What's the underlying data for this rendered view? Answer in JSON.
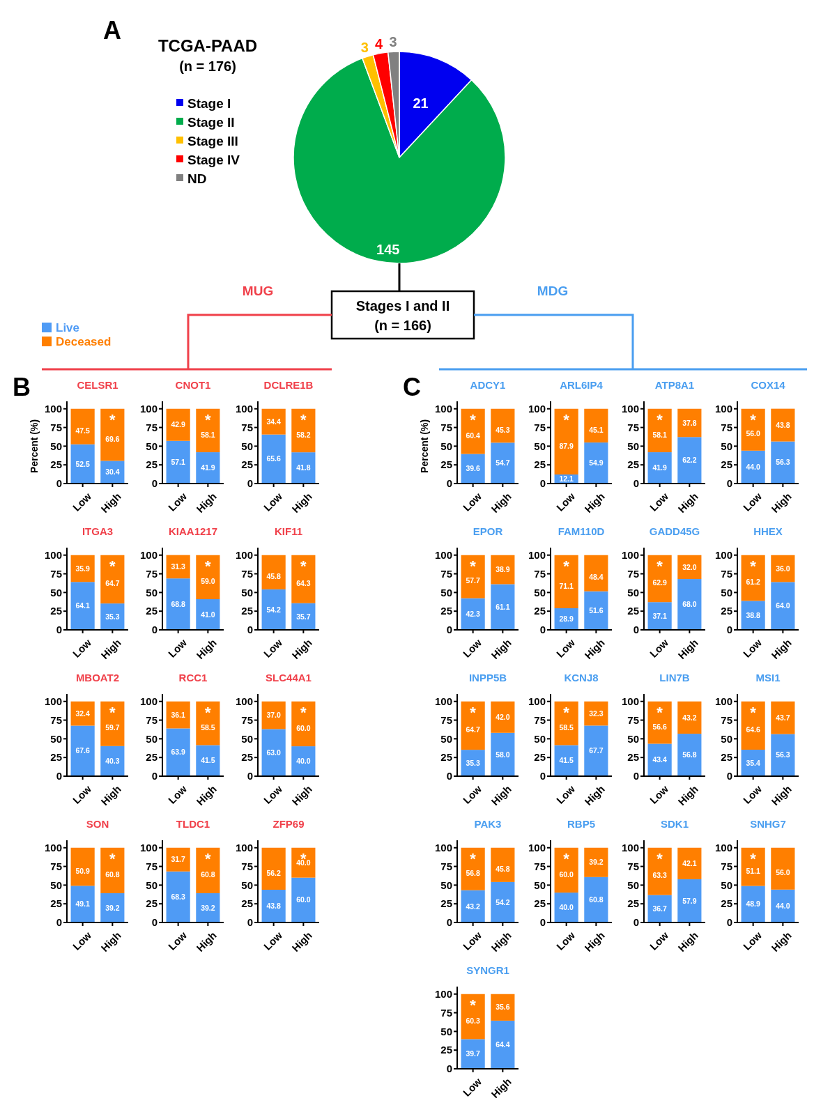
{
  "chart_data": [
    {
      "type": "pie",
      "title": "TCGA-PAAD",
      "subtitle": "(n = 176)",
      "categories": [
        "Stage I",
        "Stage II",
        "Stage III",
        "Stage IV",
        "ND"
      ],
      "values": [
        21,
        145,
        3,
        4,
        3
      ],
      "colors": [
        "#0000f0",
        "#00ac4c",
        "#ffc000",
        "#ff0000",
        "#808080"
      ],
      "data_labels": true,
      "legend": "left",
      "annotations": [
        "A",
        "MUG",
        "MDG",
        "Stages I and II",
        "(n = 166)"
      ]
    },
    {
      "type": "bar",
      "title": "CELSR1",
      "ylabel": "Percent (%)",
      "categories": [
        "Low",
        "High"
      ],
      "stacked": true,
      "series": [
        {
          "name": "Live",
          "color": "#4f9bf5",
          "values": [
            52.5,
            30.4
          ],
          "value_labels": [
            "52.5",
            "30.4"
          ]
        },
        {
          "name": "Deceased",
          "color": "#ff7f00",
          "values": [
            47.5,
            69.6
          ],
          "value_labels": [
            "47.5",
            "69.6"
          ]
        }
      ],
      "legend": "top left",
      "ylim": [
        0,
        110
      ],
      "yticks": [
        0,
        25,
        50,
        75,
        100
      ],
      "annotations": [
        "B",
        {
          "text": "*",
          "x": "High",
          "y": 100
        }
      ]
    },
    {
      "type": "bar",
      "title": "CNOT1",
      "categories": [
        "Low",
        "High"
      ],
      "stacked": true,
      "series": [
        {
          "color": "#4f9bf5",
          "values": [
            57.1,
            41.9
          ],
          "value_labels": [
            "57.1",
            "41.9"
          ]
        },
        {
          "color": "#ff7f00",
          "values": [
            42.9,
            58.1
          ],
          "value_labels": [
            "42.9",
            "58.1"
          ]
        }
      ],
      "ylim": [
        0,
        110
      ],
      "yticks": [
        0,
        25,
        50,
        75,
        100
      ],
      "annotations": [
        {
          "text": "*",
          "x": "High",
          "y": 100
        }
      ]
    },
    {
      "type": "bar",
      "title": "DCLRE1B",
      "categories": [
        "Low",
        "High"
      ],
      "stacked": true,
      "series": [
        {
          "color": "#4f9bf5",
          "values": [
            65.6,
            41.8
          ],
          "value_labels": [
            "65.6",
            "41.8"
          ]
        },
        {
          "color": "#ff7f00",
          "values": [
            34.4,
            58.2
          ],
          "value_labels": [
            "34.4",
            "58.2"
          ]
        }
      ],
      "ylim": [
        0,
        110
      ],
      "yticks": [
        0,
        25,
        50,
        75,
        100
      ],
      "annotations": [
        {
          "text": "*",
          "x": "High",
          "y": 100
        }
      ]
    },
    {
      "type": "bar",
      "title": "ITGA3",
      "categories": [
        "Low",
        "High"
      ],
      "stacked": true,
      "series": [
        {
          "color": "#4f9bf5",
          "values": [
            64.1,
            35.3
          ],
          "value_labels": [
            "64.1",
            "35.3"
          ]
        },
        {
          "color": "#ff7f00",
          "values": [
            35.9,
            64.7
          ],
          "value_labels": [
            "35.9",
            "64.7"
          ]
        }
      ],
      "ylim": [
        0,
        110
      ],
      "yticks": [
        0,
        25,
        50,
        75,
        100
      ],
      "annotations": [
        {
          "text": "*",
          "x": "High",
          "y": 100
        }
      ]
    },
    {
      "type": "bar",
      "title": "KIAA1217",
      "categories": [
        "Low",
        "High"
      ],
      "stacked": true,
      "series": [
        {
          "color": "#4f9bf5",
          "values": [
            68.8,
            41.0
          ],
          "value_labels": [
            "68.8",
            "41.0"
          ]
        },
        {
          "color": "#ff7f00",
          "values": [
            31.3,
            59.0
          ],
          "value_labels": [
            "31.3",
            "59.0"
          ]
        }
      ],
      "ylim": [
        0,
        110
      ],
      "yticks": [
        0,
        25,
        50,
        75,
        100
      ],
      "annotations": [
        {
          "text": "*",
          "x": "High",
          "y": 100
        }
      ]
    },
    {
      "type": "bar",
      "title": "KIF11",
      "categories": [
        "Low",
        "High"
      ],
      "stacked": true,
      "series": [
        {
          "color": "#4f9bf5",
          "values": [
            54.2,
            35.7
          ],
          "value_labels": [
            "54.2",
            "35.7"
          ]
        },
        {
          "color": "#ff7f00",
          "values": [
            45.8,
            64.3
          ],
          "value_labels": [
            "45.8",
            "64.3"
          ]
        }
      ],
      "ylim": [
        0,
        110
      ],
      "yticks": [
        0,
        25,
        50,
        75,
        100
      ],
      "annotations": [
        {
          "text": "*",
          "x": "High",
          "y": 100
        }
      ]
    },
    {
      "type": "bar",
      "title": "MBOAT2",
      "categories": [
        "Low",
        "High"
      ],
      "stacked": true,
      "series": [
        {
          "color": "#4f9bf5",
          "values": [
            67.6,
            40.3
          ],
          "value_labels": [
            "67.6",
            "40.3"
          ]
        },
        {
          "color": "#ff7f00",
          "values": [
            32.4,
            59.7
          ],
          "value_labels": [
            "32.4",
            "59.7"
          ]
        }
      ],
      "ylim": [
        0,
        110
      ],
      "yticks": [
        0,
        25,
        50,
        75,
        100
      ],
      "annotations": [
        {
          "text": "*",
          "x": "High",
          "y": 100
        }
      ]
    },
    {
      "type": "bar",
      "title": "RCC1",
      "categories": [
        "Low",
        "High"
      ],
      "stacked": true,
      "series": [
        {
          "color": "#4f9bf5",
          "values": [
            63.9,
            41.5
          ],
          "value_labels": [
            "63.9",
            "41.5"
          ]
        },
        {
          "color": "#ff7f00",
          "values": [
            36.1,
            58.5
          ],
          "value_labels": [
            "36.1",
            "58.5"
          ]
        }
      ],
      "ylim": [
        0,
        110
      ],
      "yticks": [
        0,
        25,
        50,
        75,
        100
      ],
      "annotations": [
        {
          "text": "*",
          "x": "High",
          "y": 100
        }
      ]
    },
    {
      "type": "bar",
      "title": "SLC44A1",
      "categories": [
        "Low",
        "High"
      ],
      "stacked": true,
      "series": [
        {
          "color": "#4f9bf5",
          "values": [
            63.0,
            40.0
          ],
          "value_labels": [
            "63.0",
            "40.0"
          ]
        },
        {
          "color": "#ff7f00",
          "values": [
            37.0,
            60.0
          ],
          "value_labels": [
            "37.0",
            "60.0"
          ]
        }
      ],
      "ylim": [
        0,
        110
      ],
      "yticks": [
        0,
        25,
        50,
        75,
        100
      ],
      "annotations": [
        {
          "text": "*",
          "x": "High",
          "y": 100
        }
      ]
    },
    {
      "type": "bar",
      "title": "SON",
      "categories": [
        "Low",
        "High"
      ],
      "stacked": true,
      "series": [
        {
          "color": "#4f9bf5",
          "values": [
            49.1,
            39.2
          ],
          "value_labels": [
            "49.1",
            "39.2"
          ]
        },
        {
          "color": "#ff7f00",
          "values": [
            50.9,
            60.8
          ],
          "value_labels": [
            "50.9",
            "60.8"
          ]
        }
      ],
      "ylim": [
        0,
        110
      ],
      "yticks": [
        0,
        25,
        50,
        75,
        100
      ],
      "annotations": [
        {
          "text": "*",
          "x": "High",
          "y": 100
        }
      ]
    },
    {
      "type": "bar",
      "title": "TLDC1",
      "categories": [
        "Low",
        "High"
      ],
      "stacked": true,
      "series": [
        {
          "color": "#4f9bf5",
          "values": [
            68.3,
            39.2
          ],
          "value_labels": [
            "68.3",
            "39.2"
          ]
        },
        {
          "color": "#ff7f00",
          "values": [
            31.7,
            60.8
          ],
          "value_labels": [
            "31.7",
            "60.8"
          ]
        }
      ],
      "ylim": [
        0,
        110
      ],
      "yticks": [
        0,
        25,
        50,
        75,
        100
      ],
      "annotations": [
        {
          "text": "*",
          "x": "High",
          "y": 100
        }
      ]
    },
    {
      "type": "bar",
      "title": "ZFP69",
      "categories": [
        "Low",
        "High"
      ],
      "stacked": true,
      "series": [
        {
          "color": "#4f9bf5",
          "values": [
            43.8,
            60.0
          ],
          "value_labels": [
            "43.8",
            "60.0"
          ]
        },
        {
          "color": "#ff7f00",
          "values": [
            56.2,
            40.0
          ],
          "value_labels": [
            "56.2",
            "40.0"
          ]
        }
      ],
      "ylim": [
        0,
        110
      ],
      "yticks": [
        0,
        25,
        50,
        75,
        100
      ],
      "annotations": [
        {
          "text": "*",
          "x": "High",
          "y": 100
        }
      ]
    },
    {
      "type": "bar",
      "title": "ADCY1",
      "ylabel": "Percent (%)",
      "categories": [
        "Low",
        "High"
      ],
      "stacked": true,
      "series": [
        {
          "color": "#4f9bf5",
          "values": [
            39.6,
            54.7
          ],
          "value_labels": [
            "39.6",
            "54.7"
          ]
        },
        {
          "color": "#ff7f00",
          "values": [
            60.4,
            45.3
          ],
          "value_labels": [
            "60.4",
            "45.3"
          ]
        }
      ],
      "ylim": [
        0,
        110
      ],
      "yticks": [
        0,
        25,
        50,
        75,
        100
      ],
      "annotations": [
        "C",
        {
          "text": "*",
          "x": "Low",
          "y": 100
        }
      ]
    },
    {
      "type": "bar",
      "title": "ARL6IP4",
      "categories": [
        "Low",
        "High"
      ],
      "stacked": true,
      "series": [
        {
          "color": "#4f9bf5",
          "values": [
            12.1,
            54.9
          ],
          "value_labels": [
            "12.1",
            "54.9"
          ]
        },
        {
          "color": "#ff7f00",
          "values": [
            87.9,
            45.1
          ],
          "value_labels": [
            "87.9",
            "45.1"
          ]
        }
      ],
      "ylim": [
        0,
        110
      ],
      "yticks": [
        0,
        25,
        50,
        75,
        100
      ],
      "annotations": [
        {
          "text": "*",
          "x": "Low",
          "y": 100
        }
      ]
    },
    {
      "type": "bar",
      "title": "ATP8A1",
      "categories": [
        "Low",
        "High"
      ],
      "stacked": true,
      "series": [
        {
          "color": "#4f9bf5",
          "values": [
            41.9,
            62.2
          ],
          "value_labels": [
            "41.9",
            "62.2"
          ]
        },
        {
          "color": "#ff7f00",
          "values": [
            58.1,
            37.8
          ],
          "value_labels": [
            "58.1",
            "37.8"
          ]
        }
      ],
      "ylim": [
        0,
        110
      ],
      "yticks": [
        0,
        25,
        50,
        75,
        100
      ],
      "annotations": [
        {
          "text": "*",
          "x": "Low",
          "y": 100
        }
      ]
    },
    {
      "type": "bar",
      "title": "COX14",
      "categories": [
        "Low",
        "High"
      ],
      "stacked": true,
      "series": [
        {
          "color": "#4f9bf5",
          "values": [
            44.0,
            56.3
          ],
          "value_labels": [
            "44.0",
            "56.3"
          ]
        },
        {
          "color": "#ff7f00",
          "values": [
            56.0,
            43.8
          ],
          "value_labels": [
            "56.0",
            "43.8"
          ]
        }
      ],
      "ylim": [
        0,
        110
      ],
      "yticks": [
        0,
        25,
        50,
        75,
        100
      ],
      "annotations": [
        {
          "text": "*",
          "x": "Low",
          "y": 100
        }
      ]
    },
    {
      "type": "bar",
      "title": "EPOR",
      "categories": [
        "Low",
        "High"
      ],
      "stacked": true,
      "series": [
        {
          "color": "#4f9bf5",
          "values": [
            42.3,
            61.1
          ],
          "value_labels": [
            "42.3",
            "61.1"
          ]
        },
        {
          "color": "#ff7f00",
          "values": [
            57.7,
            38.9
          ],
          "value_labels": [
            "57.7",
            "38.9"
          ]
        }
      ],
      "ylim": [
        0,
        110
      ],
      "yticks": [
        0,
        25,
        50,
        75,
        100
      ],
      "annotations": [
        {
          "text": "*",
          "x": "Low",
          "y": 100
        }
      ]
    },
    {
      "type": "bar",
      "title": "FAM110D",
      "categories": [
        "Low",
        "High"
      ],
      "stacked": true,
      "series": [
        {
          "color": "#4f9bf5",
          "values": [
            28.9,
            51.6
          ],
          "value_labels": [
            "28.9",
            "51.6"
          ]
        },
        {
          "color": "#ff7f00",
          "values": [
            71.1,
            48.4
          ],
          "value_labels": [
            "71.1",
            "48.4"
          ]
        }
      ],
      "ylim": [
        0,
        110
      ],
      "yticks": [
        0,
        25,
        50,
        75,
        100
      ],
      "annotations": [
        {
          "text": "*",
          "x": "Low",
          "y": 100
        }
      ]
    },
    {
      "type": "bar",
      "title": "GADD45G",
      "categories": [
        "Low",
        "High"
      ],
      "stacked": true,
      "series": [
        {
          "color": "#4f9bf5",
          "values": [
            37.1,
            68.0
          ],
          "value_labels": [
            "37.1",
            "68.0"
          ]
        },
        {
          "color": "#ff7f00",
          "values": [
            62.9,
            32.0
          ],
          "value_labels": [
            "62.9",
            "32.0"
          ]
        }
      ],
      "ylim": [
        0,
        110
      ],
      "yticks": [
        0,
        25,
        50,
        75,
        100
      ],
      "annotations": [
        {
          "text": "*",
          "x": "Low",
          "y": 100
        }
      ]
    },
    {
      "type": "bar",
      "title": "HHEX",
      "categories": [
        "Low",
        "High"
      ],
      "stacked": true,
      "series": [
        {
          "color": "#4f9bf5",
          "values": [
            38.8,
            64.0
          ],
          "value_labels": [
            "38.8",
            "64.0"
          ]
        },
        {
          "color": "#ff7f00",
          "values": [
            61.2,
            36.0
          ],
          "value_labels": [
            "61.2",
            "36.0"
          ]
        }
      ],
      "ylim": [
        0,
        110
      ],
      "yticks": [
        0,
        25,
        50,
        75,
        100
      ],
      "annotations": [
        {
          "text": "*",
          "x": "Low",
          "y": 100
        }
      ]
    },
    {
      "type": "bar",
      "title": "INPP5B",
      "categories": [
        "Low",
        "High"
      ],
      "stacked": true,
      "series": [
        {
          "color": "#4f9bf5",
          "values": [
            35.3,
            58.0
          ],
          "value_labels": [
            "35.3",
            "58.0"
          ]
        },
        {
          "color": "#ff7f00",
          "values": [
            64.7,
            42.0
          ],
          "value_labels": [
            "64.7",
            "42.0"
          ]
        }
      ],
      "ylim": [
        0,
        110
      ],
      "yticks": [
        0,
        25,
        50,
        75,
        100
      ],
      "annotations": [
        {
          "text": "*",
          "x": "Low",
          "y": 100
        }
      ]
    },
    {
      "type": "bar",
      "title": "KCNJ8",
      "categories": [
        "Low",
        "High"
      ],
      "stacked": true,
      "series": [
        {
          "color": "#4f9bf5",
          "values": [
            41.5,
            67.7
          ],
          "value_labels": [
            "41.5",
            "67.7"
          ]
        },
        {
          "color": "#ff7f00",
          "values": [
            58.5,
            32.3
          ],
          "value_labels": [
            "58.5",
            "32.3"
          ]
        }
      ],
      "ylim": [
        0,
        110
      ],
      "yticks": [
        0,
        25,
        50,
        75,
        100
      ],
      "annotations": [
        {
          "text": "*",
          "x": "Low",
          "y": 100
        }
      ]
    },
    {
      "type": "bar",
      "title": "LIN7B",
      "categories": [
        "Low",
        "High"
      ],
      "stacked": true,
      "series": [
        {
          "color": "#4f9bf5",
          "values": [
            43.4,
            56.8
          ],
          "value_labels": [
            "43.4",
            "56.8"
          ]
        },
        {
          "color": "#ff7f00",
          "values": [
            56.6,
            43.2
          ],
          "value_labels": [
            "56.6",
            "43.2"
          ]
        }
      ],
      "ylim": [
        0,
        110
      ],
      "yticks": [
        0,
        25,
        50,
        75,
        100
      ],
      "annotations": [
        {
          "text": "*",
          "x": "Low",
          "y": 100
        }
      ]
    },
    {
      "type": "bar",
      "title": "MSI1",
      "categories": [
        "Low",
        "High"
      ],
      "stacked": true,
      "series": [
        {
          "color": "#4f9bf5",
          "values": [
            35.4,
            56.3
          ],
          "value_labels": [
            "35.4",
            "56.3"
          ]
        },
        {
          "color": "#ff7f00",
          "values": [
            64.6,
            43.7
          ],
          "value_labels": [
            "64.6",
            "43.7"
          ]
        }
      ],
      "ylim": [
        0,
        110
      ],
      "yticks": [
        0,
        25,
        50,
        75,
        100
      ],
      "annotations": [
        {
          "text": "*",
          "x": "Low",
          "y": 100
        }
      ]
    },
    {
      "type": "bar",
      "title": "PAK3",
      "categories": [
        "Low",
        "High"
      ],
      "stacked": true,
      "series": [
        {
          "color": "#4f9bf5",
          "values": [
            43.2,
            54.2
          ],
          "value_labels": [
            "43.2",
            "54.2"
          ]
        },
        {
          "color": "#ff7f00",
          "values": [
            56.8,
            45.8
          ],
          "value_labels": [
            "56.8",
            "45.8"
          ]
        }
      ],
      "ylim": [
        0,
        110
      ],
      "yticks": [
        0,
        25,
        50,
        75,
        100
      ],
      "annotations": [
        {
          "text": "*",
          "x": "Low",
          "y": 100
        }
      ]
    },
    {
      "type": "bar",
      "title": "RBP5",
      "categories": [
        "Low",
        "High"
      ],
      "stacked": true,
      "series": [
        {
          "color": "#4f9bf5",
          "values": [
            40.0,
            60.8
          ],
          "value_labels": [
            "40.0",
            "60.8"
          ]
        },
        {
          "color": "#ff7f00",
          "values": [
            60.0,
            39.2
          ],
          "value_labels": [
            "60.0",
            "39.2"
          ]
        }
      ],
      "ylim": [
        0,
        110
      ],
      "yticks": [
        0,
        25,
        50,
        75,
        100
      ],
      "annotations": [
        {
          "text": "*",
          "x": "Low",
          "y": 100
        }
      ]
    },
    {
      "type": "bar",
      "title": "SDK1",
      "categories": [
        "Low",
        "High"
      ],
      "stacked": true,
      "series": [
        {
          "color": "#4f9bf5",
          "values": [
            36.7,
            57.9
          ],
          "value_labels": [
            "36.7",
            "57.9"
          ]
        },
        {
          "color": "#ff7f00",
          "values": [
            63.3,
            42.1
          ],
          "value_labels": [
            "63.3",
            "42.1"
          ]
        }
      ],
      "ylim": [
        0,
        110
      ],
      "yticks": [
        0,
        25,
        50,
        75,
        100
      ],
      "annotations": [
        {
          "text": "*",
          "x": "Low",
          "y": 100
        }
      ]
    },
    {
      "type": "bar",
      "title": "SNHG7",
      "categories": [
        "Low",
        "High"
      ],
      "stacked": true,
      "series": [
        {
          "color": "#4f9bf5",
          "values": [
            48.9,
            44.0
          ],
          "value_labels": [
            "48.9",
            "44.0"
          ]
        },
        {
          "color": "#ff7f00",
          "values": [
            51.1,
            56.0
          ],
          "value_labels": [
            "51.1",
            "56.0"
          ]
        }
      ],
      "ylim": [
        0,
        110
      ],
      "yticks": [
        0,
        25,
        50,
        75,
        100
      ],
      "annotations": [
        {
          "text": "*",
          "x": "Low",
          "y": 100
        }
      ]
    },
    {
      "type": "bar",
      "title": "SYNGR1",
      "categories": [
        "Low",
        "High"
      ],
      "stacked": true,
      "series": [
        {
          "color": "#4f9bf5",
          "values": [
            39.7,
            64.4
          ],
          "value_labels": [
            "39.7",
            "64.4"
          ]
        },
        {
          "color": "#ff7f00",
          "values": [
            60.3,
            35.6
          ],
          "value_labels": [
            "60.3",
            "35.6"
          ]
        }
      ],
      "ylim": [
        0,
        110
      ],
      "yticks": [
        0,
        25,
        50,
        75,
        100
      ],
      "annotations": [
        {
          "text": "*",
          "x": "Low",
          "y": 100
        }
      ]
    }
  ]
}
